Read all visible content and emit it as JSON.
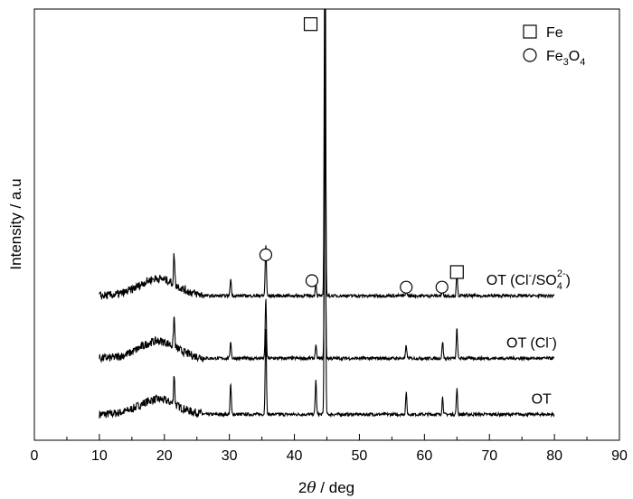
{
  "chart_data": {
    "type": "line",
    "xlabel": {
      "pre": "2",
      "theta": "θ",
      "post": " / deg"
    },
    "ylabel": "Intensity / a.u",
    "xlim": [
      0,
      90
    ],
    "xticks": [
      0,
      10,
      20,
      30,
      40,
      50,
      60,
      70,
      80,
      90
    ],
    "legend": [
      {
        "marker": "square",
        "label": "Fe"
      },
      {
        "marker": "circle",
        "label": "Fe3O4",
        "parts": [
          "Fe",
          "3",
          "O",
          "4"
        ]
      }
    ],
    "series": [
      {
        "name": "OT",
        "label_parts": [
          "OT"
        ],
        "label_x": 78,
        "baseline": 0.06,
        "amorphous": 0.035,
        "noise": 0.012,
        "peaks": [
          [
            21.5,
            0.07
          ],
          [
            30.2,
            0.07
          ],
          [
            35.6,
            0.2
          ],
          [
            43.3,
            0.08
          ],
          [
            44.7,
            1.0
          ],
          [
            57.2,
            0.05
          ],
          [
            62.8,
            0.04
          ],
          [
            65.0,
            0.06
          ],
          [
            75.0,
            0.0
          ]
        ]
      },
      {
        "name": "OT (Cl-)",
        "label_parts": [
          "OT (Cl",
          "-",
          ")"
        ],
        "label_x": 76.5,
        "baseline": 0.19,
        "amorphous": 0.04,
        "noise": 0.012,
        "peaks": [
          [
            21.5,
            0.07
          ],
          [
            30.2,
            0.04
          ],
          [
            35.6,
            0.14
          ],
          [
            43.3,
            0.03
          ],
          [
            44.7,
            0.6
          ],
          [
            57.2,
            0.03
          ],
          [
            62.8,
            0.04
          ],
          [
            65.0,
            0.07
          ]
        ]
      },
      {
        "name": "OT (Cl-/SO42-)",
        "label_parts": [
          "OT (Cl",
          "-",
          "/SO",
          "4",
          "2-",
          ")"
        ],
        "label_x": 76,
        "baseline": 0.335,
        "amorphous": 0.04,
        "noise": 0.012,
        "peaks": [
          [
            21.5,
            0.07
          ],
          [
            30.2,
            0.04
          ],
          [
            35.6,
            0.12
          ],
          [
            43.3,
            0.03
          ],
          [
            44.7,
            1.2
          ],
          [
            57.2,
            0.02
          ],
          [
            62.8,
            0.02
          ],
          [
            65.0,
            0.05
          ]
        ]
      }
    ],
    "annotations": [
      {
        "marker": "circle",
        "x": 35.6,
        "y": 0.43
      },
      {
        "marker": "circle",
        "x": 42.7,
        "y": 0.37
      },
      {
        "marker": "circle",
        "x": 57.2,
        "y": 0.355
      },
      {
        "marker": "circle",
        "x": 62.7,
        "y": 0.355
      },
      {
        "marker": "square",
        "x": 65.0,
        "y": 0.39
      },
      {
        "marker": "square",
        "x": 42.5,
        "y": 0.965
      }
    ]
  }
}
